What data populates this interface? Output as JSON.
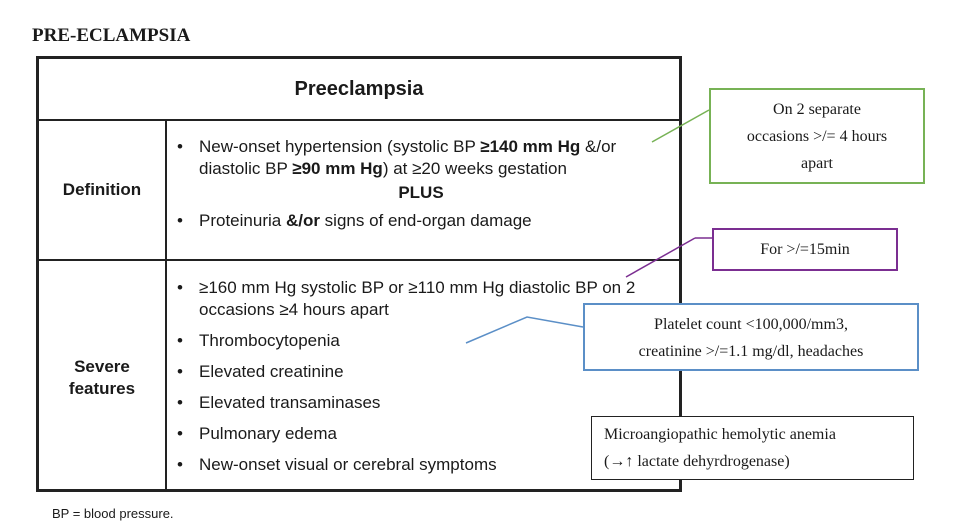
{
  "page_title": "PRE-ECLAMPSIA",
  "table": {
    "header": "Preeclampsia",
    "definition": {
      "label": "Definition",
      "item1": {
        "p1": "New-onset hypertension (systolic BP ",
        "b1": "≥140 mm Hg",
        "p2": " &/or diastolic BP ",
        "b2": "≥90 mm Hg",
        "p3": ") at ≥20 weeks gestation"
      },
      "plus": "PLUS",
      "item2": {
        "p1": "Proteinuria ",
        "b1": "&/or",
        "p2": " signs of end-organ damage"
      }
    },
    "severe": {
      "label_line1": "Severe",
      "label_line2": "features",
      "items": [
        "≥160 mm Hg systolic BP or ≥110 mm Hg diastolic BP on 2 occasions ≥4 hours apart",
        "Thrombocytopenia",
        "Elevated creatinine",
        "Elevated transaminases",
        "Pulmonary edema",
        "New-onset visual or cerebral symptoms"
      ]
    }
  },
  "footnote": "BP = blood pressure.",
  "notes": [
    {
      "line1": "On 2 separate",
      "line2": "occasions >/= 4 hours",
      "line3": "apart",
      "border_color": "#77b255"
    },
    {
      "text": "For >/=15min",
      "border_color": "#7b2e91"
    },
    {
      "line1": "Platelet count <100,000/mm3,",
      "line2": "creatinine >/=1.1 mg/dl, headaches",
      "border_color": "#5b8fc7"
    },
    {
      "line1": "Microangiopathic hemolytic anemia",
      "line2": "(→↑ lactate dehyrdrogenase)",
      "border_color": "#222222"
    }
  ]
}
